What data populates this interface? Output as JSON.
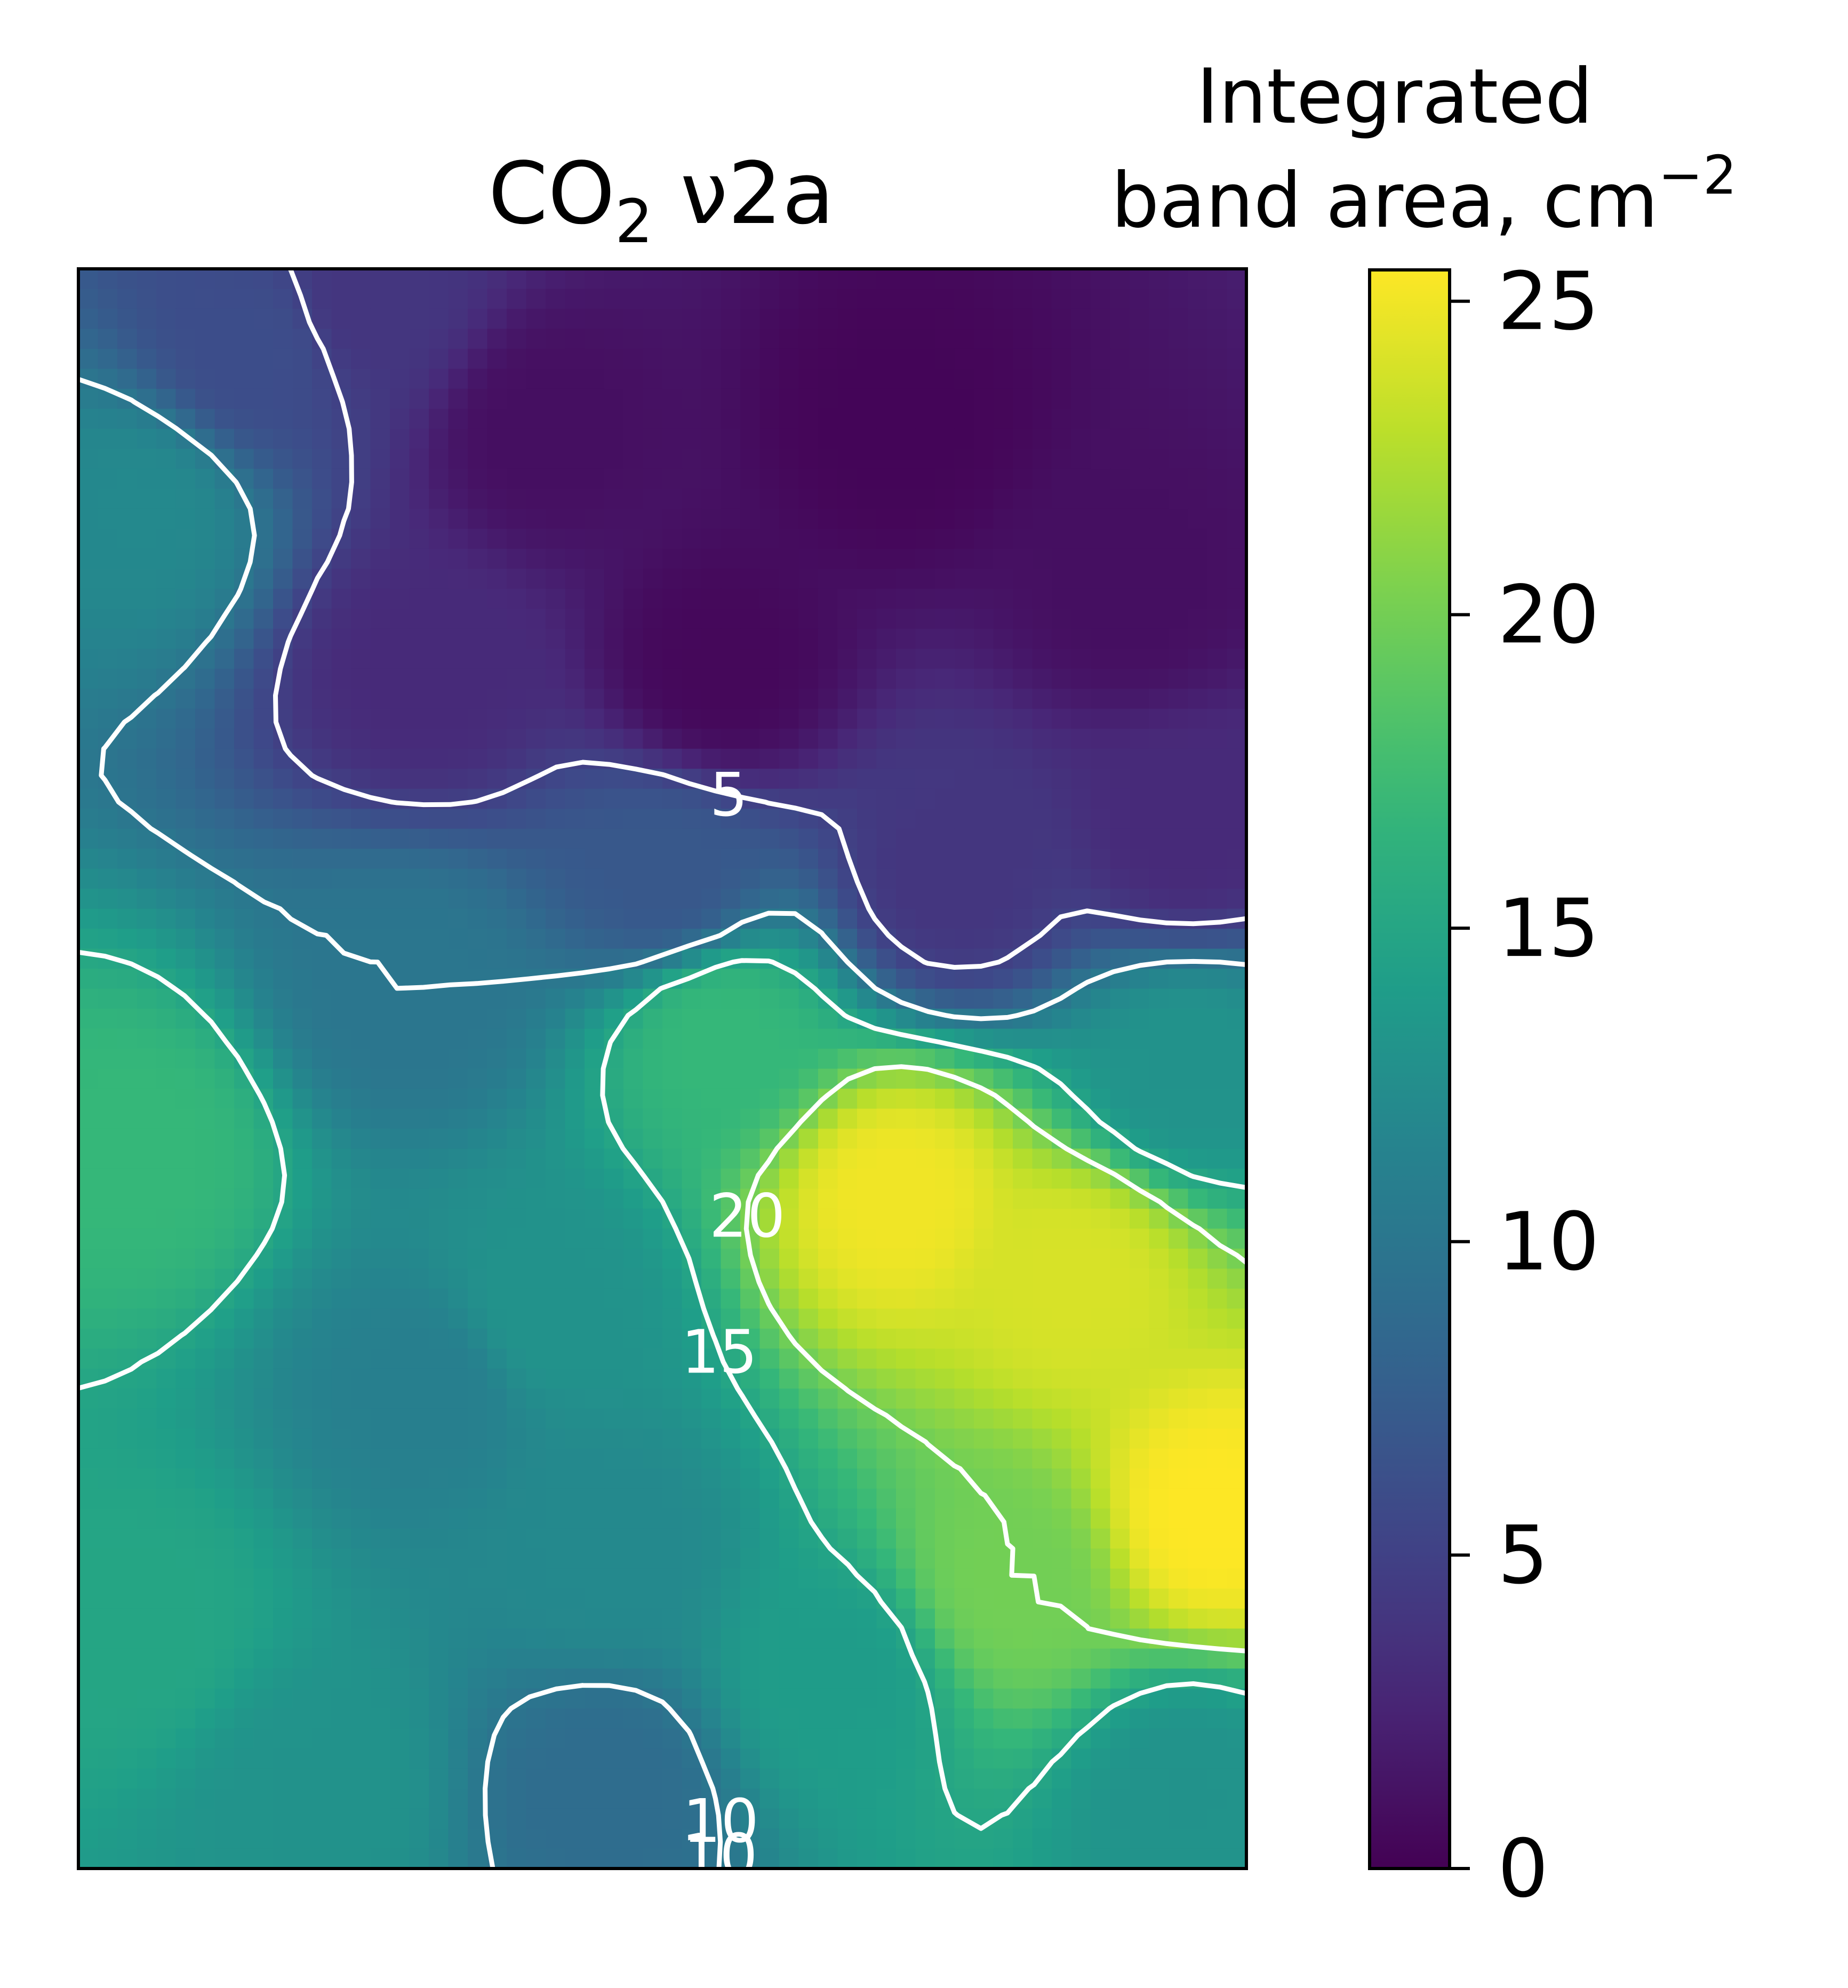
{
  "chart_data": {
    "type": "heatmap",
    "title": "CO",
    "title_subscript": "2",
    "title_suffix": " ν2a",
    "colorbar": {
      "label_line1": "Integrated",
      "label_line2": "band area, cm",
      "label_superscript": "−2",
      "ticks": [
        "0",
        "5",
        "10",
        "15",
        "20",
        "25"
      ],
      "tick_values": [
        0,
        5,
        10,
        15,
        20,
        25
      ],
      "range": [
        0,
        25.5
      ],
      "colormap": "viridis"
    },
    "axes": {
      "xlim": [
        0,
        1
      ],
      "ylim": [
        0,
        1
      ],
      "x_ticks": [],
      "y_ticks": []
    },
    "contour_levels": [
      5,
      10,
      15,
      20
    ],
    "contour_color": "#ffffff",
    "contour_labels": [
      {
        "text": "5",
        "level": 5
      },
      {
        "text": "10",
        "level": 10
      },
      {
        "text": "15",
        "level": 15
      },
      {
        "text": "20",
        "level": 20
      },
      {
        "text": "10",
        "level": 10
      }
    ],
    "field_samples": [
      {
        "x": 0.05,
        "y": 0.15,
        "v": 15
      },
      {
        "x": 0.05,
        "y": 0.45,
        "v": 17
      },
      {
        "x": 0.05,
        "y": 0.85,
        "v": 12
      },
      {
        "x": 0.15,
        "y": 0.95,
        "v": 6
      },
      {
        "x": 0.25,
        "y": 0.98,
        "v": 4
      },
      {
        "x": 0.3,
        "y": 0.3,
        "v": 11
      },
      {
        "x": 0.28,
        "y": 0.55,
        "v": 10
      },
      {
        "x": 0.3,
        "y": 0.75,
        "v": 3
      },
      {
        "x": 0.4,
        "y": 0.9,
        "v": 1
      },
      {
        "x": 0.55,
        "y": 0.75,
        "v": 0.5
      },
      {
        "x": 0.7,
        "y": 0.9,
        "v": 0.3
      },
      {
        "x": 0.9,
        "y": 0.8,
        "v": 1
      },
      {
        "x": 0.95,
        "y": 0.65,
        "v": 3
      },
      {
        "x": 0.75,
        "y": 0.62,
        "v": 4
      },
      {
        "x": 0.5,
        "y": 0.62,
        "v": 7
      },
      {
        "x": 0.95,
        "y": 0.5,
        "v": 13
      },
      {
        "x": 0.55,
        "y": 0.52,
        "v": 17
      },
      {
        "x": 0.7,
        "y": 0.42,
        "v": 25
      },
      {
        "x": 0.85,
        "y": 0.37,
        "v": 24
      },
      {
        "x": 0.97,
        "y": 0.22,
        "v": 25.5
      },
      {
        "x": 0.8,
        "y": 0.18,
        "v": 20
      },
      {
        "x": 0.65,
        "y": 0.12,
        "v": 14
      },
      {
        "x": 0.45,
        "y": 0.2,
        "v": 12
      },
      {
        "x": 0.45,
        "y": 0.05,
        "v": 9
      },
      {
        "x": 0.2,
        "y": 0.05,
        "v": 13
      },
      {
        "x": 0.95,
        "y": 0.05,
        "v": 13
      },
      {
        "x": 0.4,
        "y": 0.35,
        "v": 13
      }
    ]
  }
}
